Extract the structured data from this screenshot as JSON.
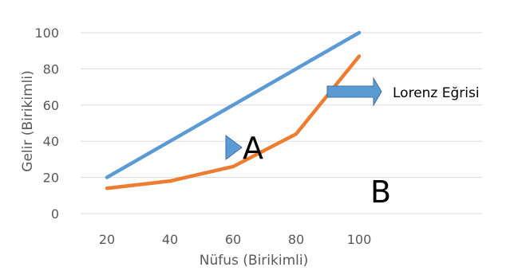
{
  "chart_data": {
    "type": "line",
    "title": "",
    "xlabel": "Nüfus (Birikimli)",
    "ylabel": "Gelir (Birikimli)",
    "x": [
      20,
      40,
      60,
      80,
      100
    ],
    "ylim": [
      0,
      100
    ],
    "yticks": [
      0,
      20,
      40,
      60,
      80,
      100
    ],
    "grid": "horizontal",
    "series": [
      {
        "values": [
          20,
          40,
          60,
          80,
          100
        ],
        "color": "#5B9BD5"
      },
      {
        "values": [
          14,
          18,
          26,
          44,
          87
        ],
        "color": "#ED7D31"
      }
    ],
    "annotations": {
      "lorenz_label": "Lorenz Eğrisi",
      "area_a": "A",
      "area_b": "B"
    },
    "arrow_color": "#5B9BD5"
  }
}
